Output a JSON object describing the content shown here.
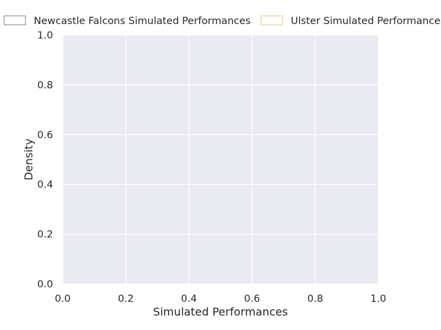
{
  "chart_data": {
    "type": "area",
    "title": "",
    "xlabel": "Simulated Performances",
    "ylabel": "Density",
    "xlim": [
      0.0,
      1.0
    ],
    "ylim": [
      0.0,
      1.0
    ],
    "x_ticks": [
      "0.0",
      "0.2",
      "0.4",
      "0.6",
      "0.8",
      "1.0"
    ],
    "y_ticks": [
      "0.0",
      "0.2",
      "0.4",
      "0.6",
      "0.8",
      "1.0"
    ],
    "grid": true,
    "legend_position": "top",
    "series": [
      {
        "name": "Newcastle Falcons Simulated Performances",
        "color": "#808080",
        "values": []
      },
      {
        "name": "Ulster Simulated Performances",
        "color": "#e8c37a",
        "values": []
      }
    ]
  },
  "colors": {
    "plot_background": "#eaeaf2",
    "grid": "#ffffff",
    "text": "#262626"
  }
}
